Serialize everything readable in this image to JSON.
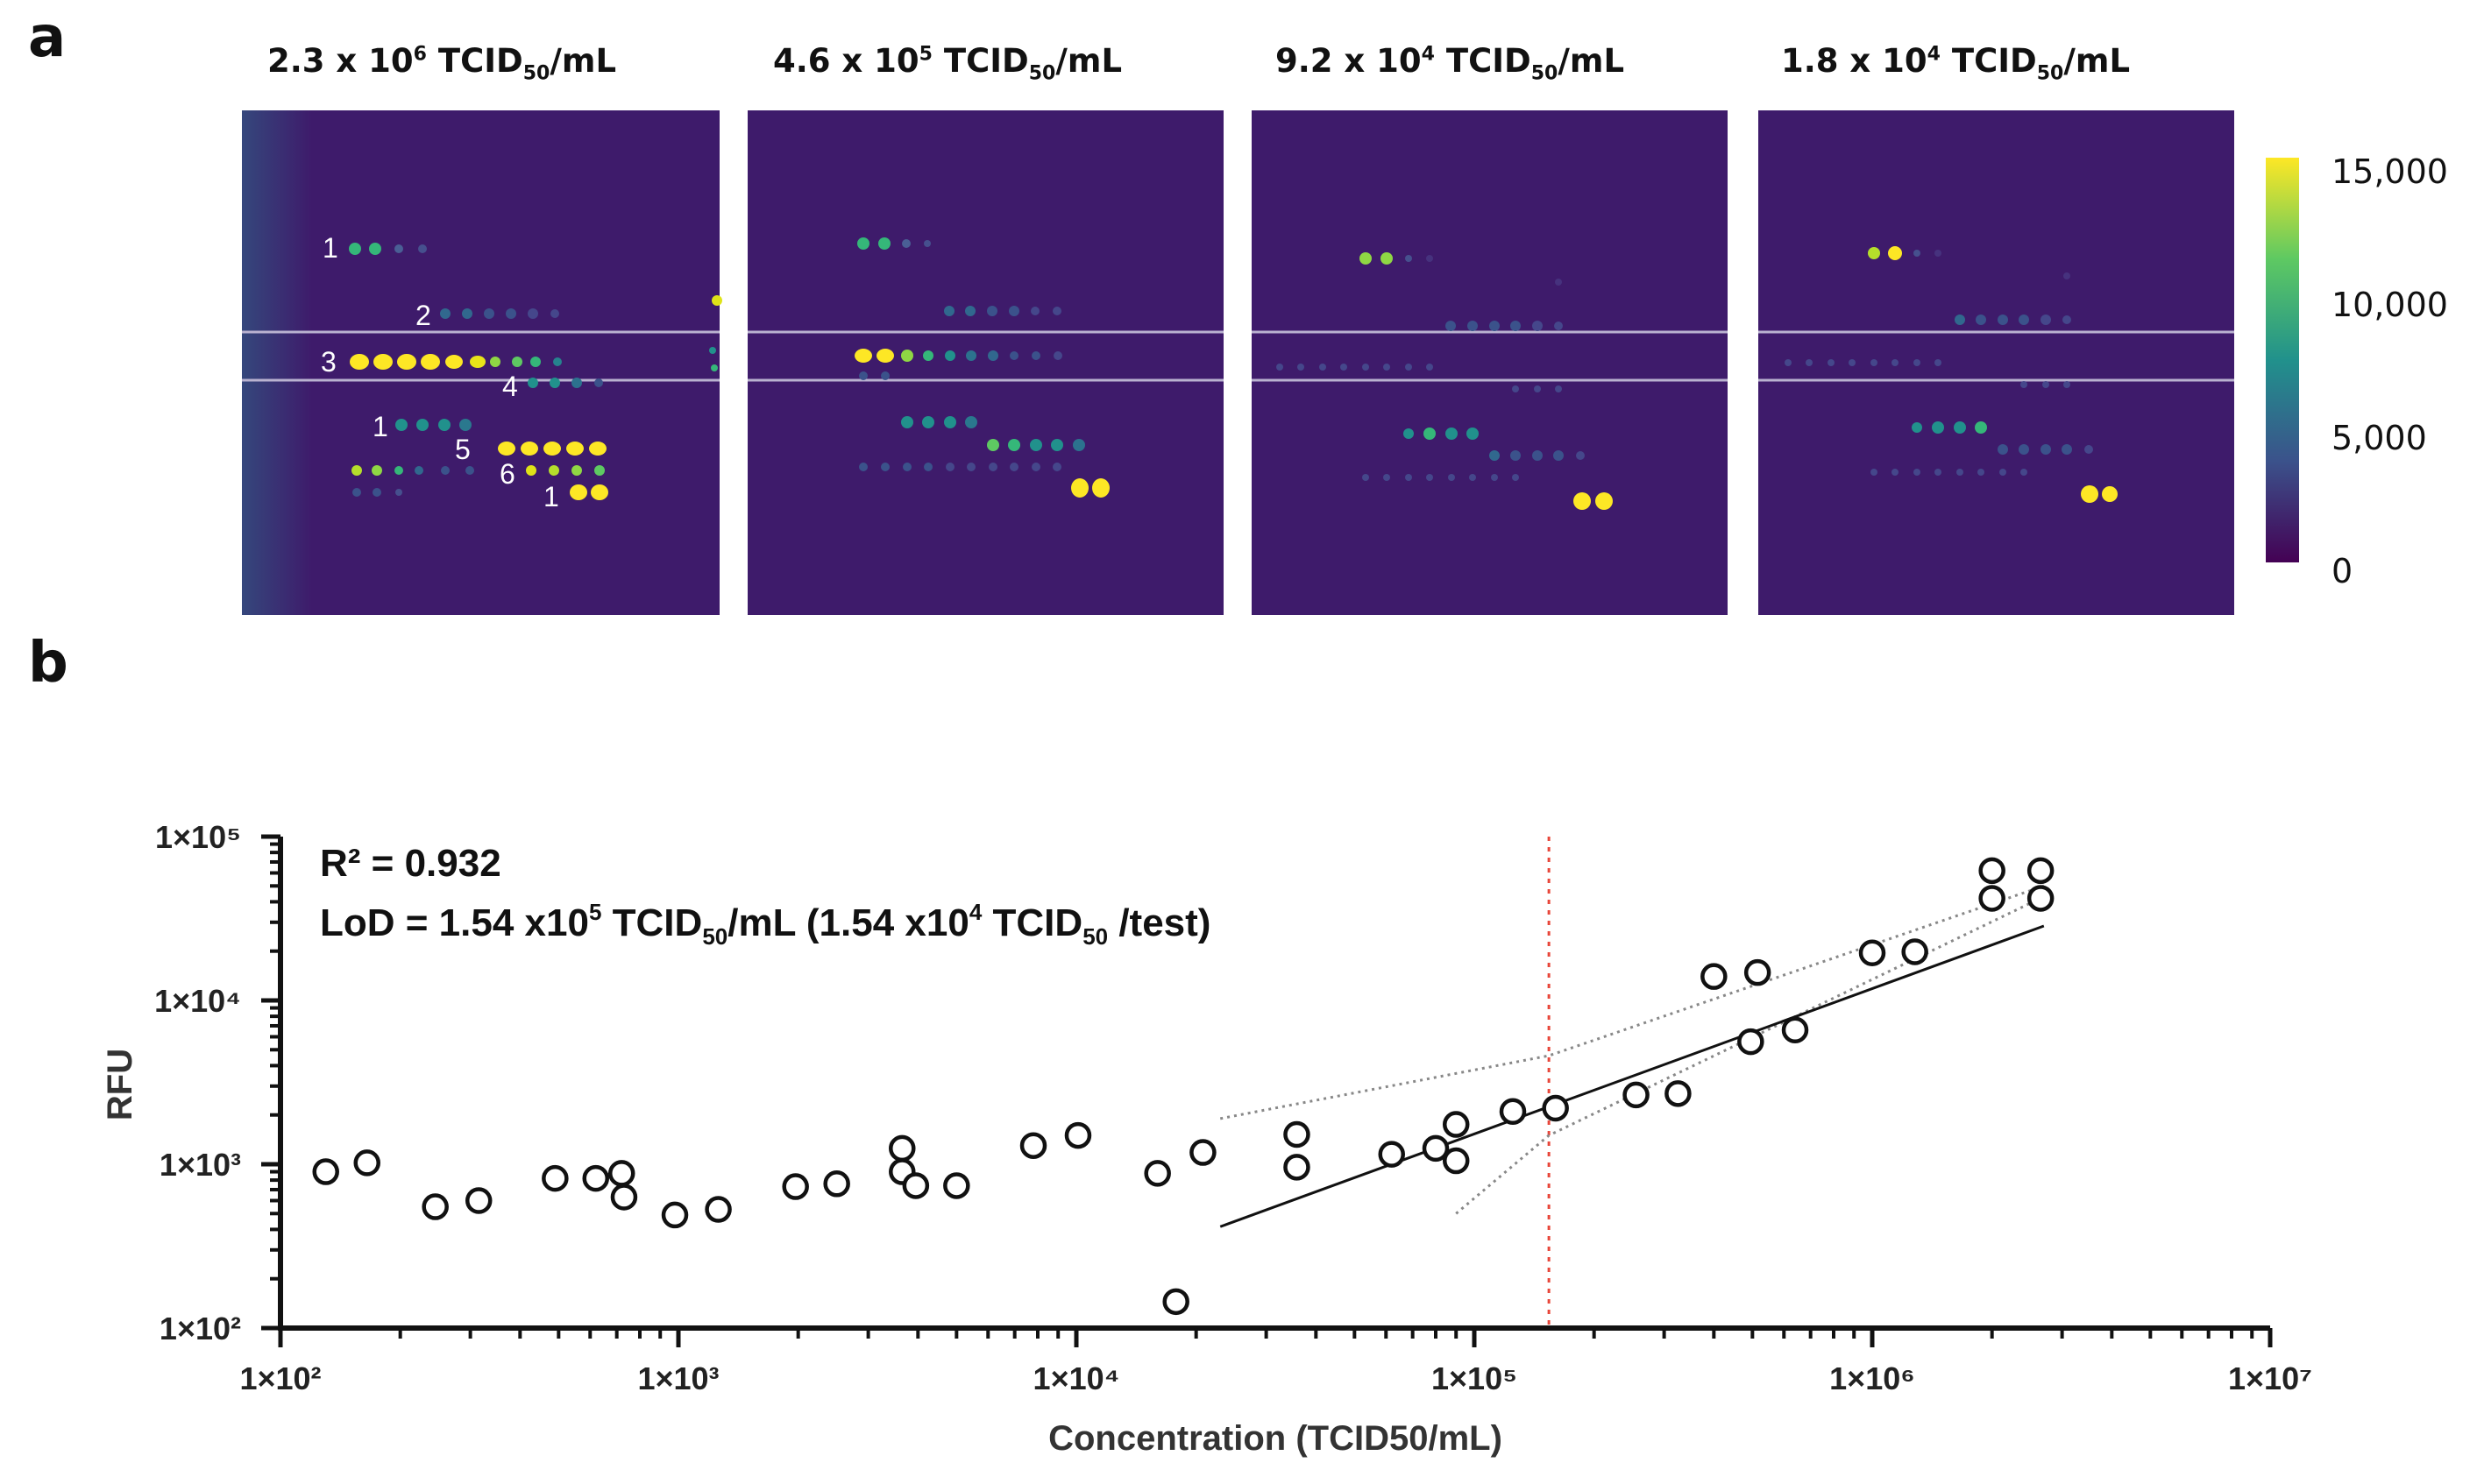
{
  "panel_a": {
    "letter": "a",
    "images": [
      {
        "conc": "2.3 x 10",
        "exp": "6",
        "unit_base": " TCID",
        "unit_sub": "50",
        "unit_end": "/mL"
      },
      {
        "conc": "4.6 x 10",
        "exp": "5",
        "unit_base": " TCID",
        "unit_sub": "50",
        "unit_end": "/mL"
      },
      {
        "conc": "9.2 x 10",
        "exp": "4",
        "unit_base": " TCID",
        "unit_sub": "50",
        "unit_end": "/mL"
      },
      {
        "conc": "1.8 x 10",
        "exp": "4",
        "unit_base": " TCID",
        "unit_sub": "50",
        "unit_end": "/mL"
      }
    ],
    "spot_labels": [
      "1",
      "2",
      "3",
      "4",
      "1",
      "5",
      "6",
      "1"
    ],
    "colorbar": {
      "ticks": [
        "15,000",
        "10,000",
        "5,000",
        "0"
      ],
      "range": [
        0,
        15000
      ],
      "colors": [
        "#fde725",
        "#5ec962",
        "#21918c",
        "#3b528b",
        "#440154"
      ]
    },
    "image_background": "#3e1b6b"
  },
  "panel_b": {
    "letter": "b"
  },
  "chart_data": {
    "type": "scatter",
    "title": "",
    "xlabel": "Concentration (TCID50/mL)",
    "ylabel": "RFU",
    "xscale": "log",
    "yscale": "log",
    "xlim": [
      100,
      10000000
    ],
    "ylim": [
      100,
      100000
    ],
    "x_tick_labels": [
      "1×10²",
      "1×10³",
      "1×10⁴",
      "1×10⁵",
      "1×10⁶",
      "1×10⁷"
    ],
    "y_tick_labels": [
      "1×10⁵",
      "1×10⁴",
      "1×10³",
      "1×10²"
    ],
    "annotations": {
      "r2": "R² = 0.932",
      "lod_prefix": "LoD = 1.54 x10",
      "lod_exp": "5",
      "lod_mid": " TCID",
      "lod_sub": "50",
      "lod_mid2": "/mL (1.54 x10",
      "lod_exp2": "4",
      "lod_mid3": " TCID",
      "lod_sub2": "50",
      "lod_end": " /test)"
    },
    "lod_x": 154000,
    "fit_line": {
      "slope": 0.887,
      "intercept": -1.25,
      "x_range": [
        23000,
        2700000
      ]
    },
    "confidence_band": {
      "upper": [
        [
          23000,
          1900
        ],
        [
          154000,
          4600
        ],
        [
          2700000,
          50000
        ]
      ],
      "lower": [
        [
          90000,
          500
        ],
        [
          154000,
          1500
        ],
        [
          2700000,
          43000
        ]
      ]
    },
    "points": [
      [
        130,
        900
      ],
      [
        165,
        1020
      ],
      [
        245,
        550
      ],
      [
        315,
        600
      ],
      [
        490,
        820
      ],
      [
        620,
        820
      ],
      [
        720,
        880
      ],
      [
        730,
        630
      ],
      [
        980,
        490
      ],
      [
        1260,
        530
      ],
      [
        1970,
        730
      ],
      [
        2500,
        760
      ],
      [
        3650,
        1250
      ],
      [
        3650,
        900
      ],
      [
        3950,
        740
      ],
      [
        5000,
        740
      ],
      [
        7800,
        1300
      ],
      [
        10100,
        1500
      ],
      [
        16000,
        880
      ],
      [
        17800,
        145
      ],
      [
        20800,
        1180
      ],
      [
        35800,
        1520
      ],
      [
        35800,
        960
      ],
      [
        62000,
        1150
      ],
      [
        80000,
        1250
      ],
      [
        90000,
        1050
      ],
      [
        90000,
        1750
      ],
      [
        125000,
        2100
      ],
      [
        160000,
        2200
      ],
      [
        255000,
        2650
      ],
      [
        325000,
        2700
      ],
      [
        400000,
        14000
      ],
      [
        495000,
        5600
      ],
      [
        515000,
        14800
      ],
      [
        640000,
        6600
      ],
      [
        1000000,
        19500
      ],
      [
        1280000,
        19800
      ],
      [
        2000000,
        62000
      ],
      [
        2000000,
        42000
      ],
      [
        2650000,
        62000
      ],
      [
        2650000,
        42000
      ]
    ]
  }
}
